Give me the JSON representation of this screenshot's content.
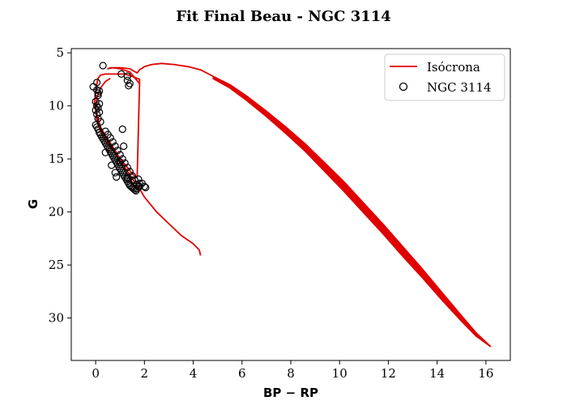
{
  "chart_data": {
    "type": "scatter",
    "title": "Fit Final Beau - NGC 3114",
    "xlabel": "BP − RP",
    "ylabel": "G",
    "xlim": [
      -1.0,
      17.0
    ],
    "ylim": [
      34.0,
      4.6
    ],
    "y_inverted": true,
    "x_ticks": [
      0,
      2,
      4,
      6,
      8,
      10,
      12,
      14,
      16
    ],
    "x_tick_labels": [
      "0",
      "2",
      "4",
      "6",
      "8",
      "10",
      "12",
      "14",
      "16"
    ],
    "y_ticks": [
      5,
      10,
      15,
      20,
      25,
      30
    ],
    "y_tick_labels": [
      "5",
      "10",
      "15",
      "20",
      "25",
      "30"
    ],
    "legend": {
      "position": "top-right",
      "entries": [
        {
          "label": "Isócrona",
          "marker": "line",
          "color": "#e00000"
        },
        {
          "label": "NGC 3114",
          "marker": "open-circle",
          "color": "#000000"
        }
      ]
    },
    "series": [
      {
        "name": "Isócrona",
        "type": "line",
        "color": "#e00000",
        "segments": [
          {
            "x": [
              4.3,
              4.25,
              4.0,
              3.5,
              3.0,
              2.5,
              2.0,
              1.85,
              1.6,
              1.4,
              1.2,
              1.0,
              0.8,
              0.6,
              0.4,
              0.2,
              0.1,
              0.0,
              -0.05,
              0.0,
              0.05,
              0.1,
              0.2,
              0.4,
              0.8,
              1.2,
              1.6,
              1.8,
              1.8,
              1.7,
              1.5,
              1.3,
              1.0,
              0.7,
              0.4,
              0.2,
              0.05,
              0.0,
              0.05,
              0.2,
              0.4,
              0.6
            ],
            "y": [
              24.1,
              23.6,
              23.0,
              22.2,
              21.1,
              20.0,
              18.6,
              18.0,
              17.2,
              16.5,
              15.8,
              15.0,
              14.2,
              13.5,
              12.8,
              12.0,
              11.2,
              10.4,
              9.7,
              8.7,
              7.9,
              7.4,
              7.1,
              7.0,
              7.0,
              7.0,
              7.3,
              7.5,
              7.9,
              16.8,
              16.4,
              15.8,
              15.0,
              14.2,
              13.3,
              12.4,
              11.4,
              10.3,
              9.2,
              8.3,
              7.7,
              7.4
            ]
          },
          {
            "x": [
              1.8,
              1.4,
              1.0,
              0.7,
              0.5,
              0.6,
              1.0,
              1.4,
              1.7,
              1.8,
              2.0,
              2.3,
              2.7,
              3.2,
              3.8,
              4.3,
              4.8,
              5.5,
              6.2,
              7.0,
              7.8,
              8.6,
              9.4,
              10.2,
              11.0,
              11.8,
              12.6,
              13.4,
              14.2,
              15.0,
              15.6,
              16.2
            ],
            "y": [
              7.9,
              6.8,
              6.5,
              6.4,
              6.5,
              6.4,
              6.4,
              6.5,
              6.9,
              6.6,
              6.3,
              6.1,
              6.0,
              6.1,
              6.3,
              6.6,
              7.2,
              8.0,
              9.1,
              10.5,
              12.0,
              13.6,
              15.4,
              17.2,
              19.2,
              21.2,
              23.3,
              25.4,
              27.6,
              29.8,
              31.4,
              32.7
            ]
          },
          {
            "x": [
              4.8,
              5.5,
              6.2,
              7.0,
              7.8,
              8.6,
              9.4,
              10.2,
              11.0,
              11.8,
              12.6,
              13.4,
              14.2,
              15.0,
              15.6,
              16.2
            ],
            "y": [
              7.4,
              8.3,
              9.5,
              11.0,
              12.6,
              14.3,
              16.2,
              18.1,
              20.1,
              22.1,
              24.2,
              26.2,
              28.3,
              30.3,
              31.7,
              32.7
            ]
          }
        ]
      },
      {
        "name": "NGC 3114",
        "type": "scatter",
        "marker": "open-circle",
        "color": "#000000",
        "x": [
          0.3,
          1.05,
          1.3,
          1.3,
          1.4,
          1.35,
          -0.1,
          0.05,
          0.05,
          0.1,
          0.1,
          0.15,
          0.0,
          0.05,
          0.0,
          0.05,
          0.1,
          0.1,
          0.15,
          0.15,
          0.2,
          0.0,
          0.05,
          0.1,
          0.15,
          0.2,
          0.25,
          0.3,
          0.35,
          0.4,
          0.45,
          0.5,
          0.55,
          0.6,
          0.65,
          0.7,
          0.75,
          0.8,
          0.85,
          0.9,
          0.95,
          1.0,
          1.05,
          1.1,
          1.15,
          1.2,
          1.25,
          1.3,
          1.35,
          1.4,
          1.45,
          1.5,
          1.55,
          1.6,
          1.65,
          1.7,
          1.75,
          1.8,
          0.4,
          0.5,
          0.6,
          0.7,
          0.8,
          0.9,
          1.0,
          1.1,
          1.2,
          1.3,
          1.4,
          1.5,
          1.6,
          1.7,
          1.8,
          1.1,
          1.15,
          0.4,
          0.65,
          0.8,
          0.85,
          1.3,
          1.5,
          1.75,
          1.9,
          2.0,
          2.05,
          0.7,
          1.0
        ],
        "y": [
          6.2,
          7.0,
          7.2,
          7.6,
          7.9,
          8.1,
          8.2,
          7.8,
          8.5,
          8.8,
          9.0,
          8.6,
          9.6,
          10.0,
          10.4,
          10.8,
          11.2,
          10.2,
          9.8,
          10.6,
          11.5,
          11.8,
          12.0,
          12.2,
          12.5,
          12.7,
          12.9,
          13.1,
          13.3,
          13.5,
          13.7,
          13.9,
          14.1,
          14.3,
          14.5,
          14.7,
          14.9,
          15.1,
          15.3,
          15.5,
          15.7,
          15.9,
          16.1,
          16.3,
          16.5,
          16.7,
          16.9,
          17.1,
          17.3,
          17.5,
          17.6,
          17.7,
          17.8,
          17.9,
          18.0,
          17.8,
          17.6,
          17.3,
          12.4,
          12.7,
          13.0,
          13.4,
          13.8,
          14.2,
          14.6,
          15.0,
          15.4,
          15.8,
          16.2,
          16.6,
          17.0,
          17.4,
          17.6,
          12.2,
          13.8,
          14.4,
          15.6,
          16.3,
          16.7,
          16.8,
          17.0,
          16.9,
          17.3,
          17.6,
          17.7,
          14.7,
          15.3
        ]
      }
    ]
  }
}
